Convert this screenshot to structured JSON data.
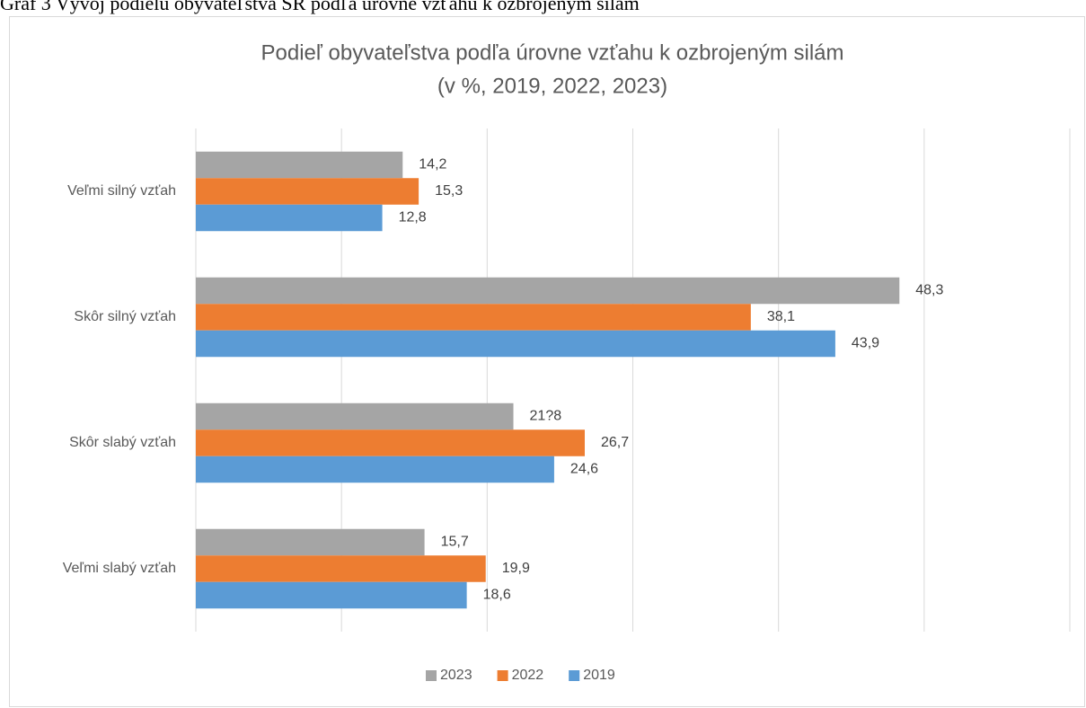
{
  "caption": "Graf 3 Vývoj podielu obyvateľstva SR podľa úrovne vzťahu k ozbrojeným silám",
  "chart_data": {
    "type": "hbar",
    "title": "Podieľ obyvateľstva podľa úrovne vzťahu k ozbrojeným silám",
    "subtitle": "(v %, 2019, 2022, 2023)",
    "categories": [
      "Veľmi silný vzťah",
      "Skôr silný vzťah",
      "Skôr slabý vzťah",
      "Veľmi slabý vzťah"
    ],
    "series": [
      {
        "name": "2023",
        "color": "#a5a5a5",
        "values": [
          14.2,
          48.3,
          21.8,
          15.7
        ],
        "value_labels": [
          "14,2",
          "48,3",
          "21?8",
          "15,7"
        ]
      },
      {
        "name": "2022",
        "color": "#ed7d31",
        "values": [
          15.3,
          38.1,
          26.7,
          19.9
        ],
        "value_labels": [
          "15,3",
          "38,1",
          "26,7",
          "19,9"
        ]
      },
      {
        "name": "2019",
        "color": "#5b9bd5",
        "values": [
          12.8,
          43.9,
          24.6,
          18.6
        ],
        "value_labels": [
          "12,8",
          "43,9",
          "24,6",
          "18,6"
        ]
      }
    ],
    "xlim": [
      0,
      60
    ],
    "xticks": [
      0,
      10,
      20,
      30,
      40,
      50,
      60
    ],
    "grid": true,
    "legend": "bottom"
  }
}
